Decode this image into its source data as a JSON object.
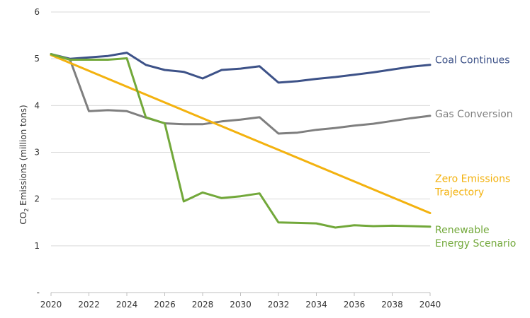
{
  "chart_data": {
    "type": "line",
    "ylabel_main": "CO",
    "ylabel_sub": "2",
    "ylabel_rest": " Emissions (million tons)",
    "ylim": [
      0,
      6
    ],
    "xlim": [
      2020,
      2040
    ],
    "y_ticks": [
      {
        "value": 0,
        "label": "-"
      },
      {
        "value": 1,
        "label": "1"
      },
      {
        "value": 2,
        "label": "2"
      },
      {
        "value": 3,
        "label": "3"
      },
      {
        "value": 4,
        "label": "4"
      },
      {
        "value": 5,
        "label": "5"
      },
      {
        "value": 6,
        "label": "6"
      }
    ],
    "x_ticks": [
      2020,
      2022,
      2024,
      2026,
      2028,
      2030,
      2032,
      2034,
      2036,
      2038,
      2040
    ],
    "grid": "horizontal",
    "series": [
      {
        "name": "Coal Continues",
        "label_lines": [
          "Coal Continues"
        ],
        "label_value": 4.98,
        "color": "#3d5288",
        "x": [
          2020,
          2021,
          2022,
          2023,
          2024,
          2025,
          2026,
          2027,
          2028,
          2029,
          2030,
          2031,
          2032,
          2033,
          2034,
          2035,
          2036,
          2037,
          2038,
          2039,
          2040
        ],
        "values": [
          5.1,
          5.0,
          5.03,
          5.06,
          5.13,
          4.87,
          4.76,
          4.72,
          4.58,
          4.76,
          4.79,
          4.84,
          4.49,
          4.52,
          4.57,
          4.61,
          4.66,
          4.71,
          4.77,
          4.83,
          4.87
        ]
      },
      {
        "name": "Gas Conversion",
        "label_lines": [
          "Gas Conversion"
        ],
        "label_value": 3.82,
        "color": "#7f7f7f",
        "x": [
          2020,
          2021,
          2022,
          2023,
          2024,
          2025,
          2026,
          2027,
          2028,
          2029,
          2030,
          2031,
          2032,
          2033,
          2034,
          2035,
          2036,
          2037,
          2038,
          2039,
          2040
        ],
        "values": [
          5.1,
          4.98,
          3.88,
          3.9,
          3.88,
          3.74,
          3.62,
          3.6,
          3.6,
          3.66,
          3.7,
          3.75,
          3.4,
          3.42,
          3.48,
          3.52,
          3.57,
          3.61,
          3.67,
          3.73,
          3.78
        ]
      },
      {
        "name": "Zero Emissions Trajectory",
        "label_lines": [
          "Zero Emissions",
          "Trajectory"
        ],
        "label_value": 2.3,
        "color": "#f3b20f",
        "x": [
          2020,
          2040
        ],
        "values": [
          5.08,
          1.7
        ]
      },
      {
        "name": "Renewable Energy Scenario",
        "label_lines": [
          "Renewable",
          "Energy Scenario"
        ],
        "label_value": 1.2,
        "color": "#72a83a",
        "x": [
          2020,
          2021,
          2022,
          2023,
          2024,
          2025,
          2026,
          2027,
          2028,
          2029,
          2030,
          2031,
          2032,
          2033,
          2034,
          2035,
          2036,
          2037,
          2038,
          2039,
          2040
        ],
        "values": [
          5.1,
          4.98,
          4.98,
          4.98,
          5.01,
          3.75,
          3.62,
          1.95,
          2.14,
          2.02,
          2.06,
          2.12,
          1.5,
          1.49,
          1.48,
          1.39,
          1.44,
          1.42,
          1.43,
          1.42,
          1.41
        ]
      }
    ]
  }
}
